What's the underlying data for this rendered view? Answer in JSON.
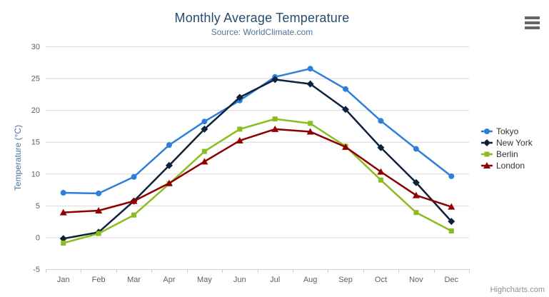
{
  "header": {
    "title": "Monthly Average Temperature",
    "subtitle": "Source: WorldClimate.com"
  },
  "credits": "Highcharts.com",
  "icons": {
    "context_menu": "hamburger-icon"
  },
  "colors": {
    "title": "#274b6d",
    "subtitle": "#4d759e",
    "axis_title": "#4d759e",
    "tick_label": "#606060",
    "grid_line": "#d8d8d8",
    "axis_line": "#c0d0e0",
    "legend_text": "#333333",
    "credits_text": "#909090",
    "menu_icon": "#666666",
    "background": "#ffffff"
  },
  "chart_data": {
    "type": "line",
    "title": "Monthly Average Temperature",
    "subtitle": "Source: WorldClimate.com",
    "xlabel": "",
    "ylabel": "Temperature (°C)",
    "ylim": [
      -5,
      30
    ],
    "yticks": [
      -5,
      0,
      5,
      10,
      15,
      20,
      25,
      30
    ],
    "grid": true,
    "legend_position": "right",
    "categories": [
      "Jan",
      "Feb",
      "Mar",
      "Apr",
      "May",
      "Jun",
      "Jul",
      "Aug",
      "Sep",
      "Oct",
      "Nov",
      "Dec"
    ],
    "series": [
      {
        "name": "Tokyo",
        "color": "#2f7ed8",
        "marker": "circle",
        "values": [
          7.0,
          6.9,
          9.5,
          14.5,
          18.2,
          21.5,
          25.2,
          26.5,
          23.3,
          18.3,
          13.9,
          9.6
        ]
      },
      {
        "name": "New York",
        "color": "#0d233a",
        "marker": "diamond",
        "values": [
          -0.2,
          0.8,
          5.7,
          11.3,
          17.0,
          22.0,
          24.8,
          24.1,
          20.1,
          14.1,
          8.6,
          2.5
        ]
      },
      {
        "name": "Berlin",
        "color": "#8bbc21",
        "marker": "square",
        "values": [
          -0.9,
          0.6,
          3.5,
          8.4,
          13.5,
          17.0,
          18.6,
          17.9,
          14.3,
          9.0,
          3.9,
          1.0
        ]
      },
      {
        "name": "London",
        "color": "#910000",
        "marker": "triangle",
        "values": [
          3.9,
          4.2,
          5.7,
          8.5,
          11.9,
          15.2,
          17.0,
          16.6,
          14.2,
          10.3,
          6.6,
          4.8
        ]
      }
    ]
  }
}
